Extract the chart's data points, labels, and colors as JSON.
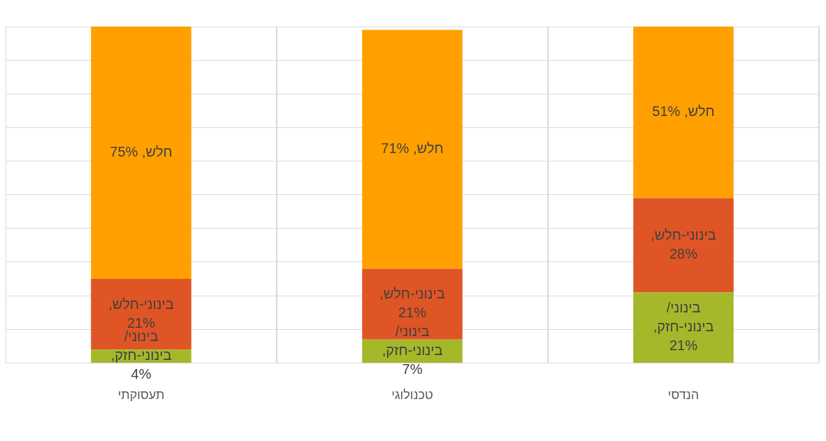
{
  "chart_data": {
    "type": "bar",
    "stacked": true,
    "categories": [
      "תעסוקתי",
      "טכנולוגי",
      "הנדסי"
    ],
    "series": [
      {
        "color": "#a5b82a",
        "values": [
          4,
          7,
          21
        ],
        "value_labels": [
          "בינוני/ בינוני-חזק, 4%",
          "בינוני/ בינוני-חזק, 7%",
          "בינוני/ בינוני-חזק, 21%"
        ]
      },
      {
        "color": "#e05525",
        "values": [
          21,
          21,
          28
        ],
        "value_labels": [
          "בינוני-חלש, 21%",
          "בינוני-חלש, 21%",
          "בינוני-חלש, 28%"
        ]
      },
      {
        "color": "#ffa000",
        "values": [
          75,
          71,
          51
        ],
        "value_labels": [
          "חלש, 75%",
          "חלש, 71%",
          "חלש, 51%"
        ]
      }
    ],
    "grid": true,
    "tick_labels": "x"
  }
}
